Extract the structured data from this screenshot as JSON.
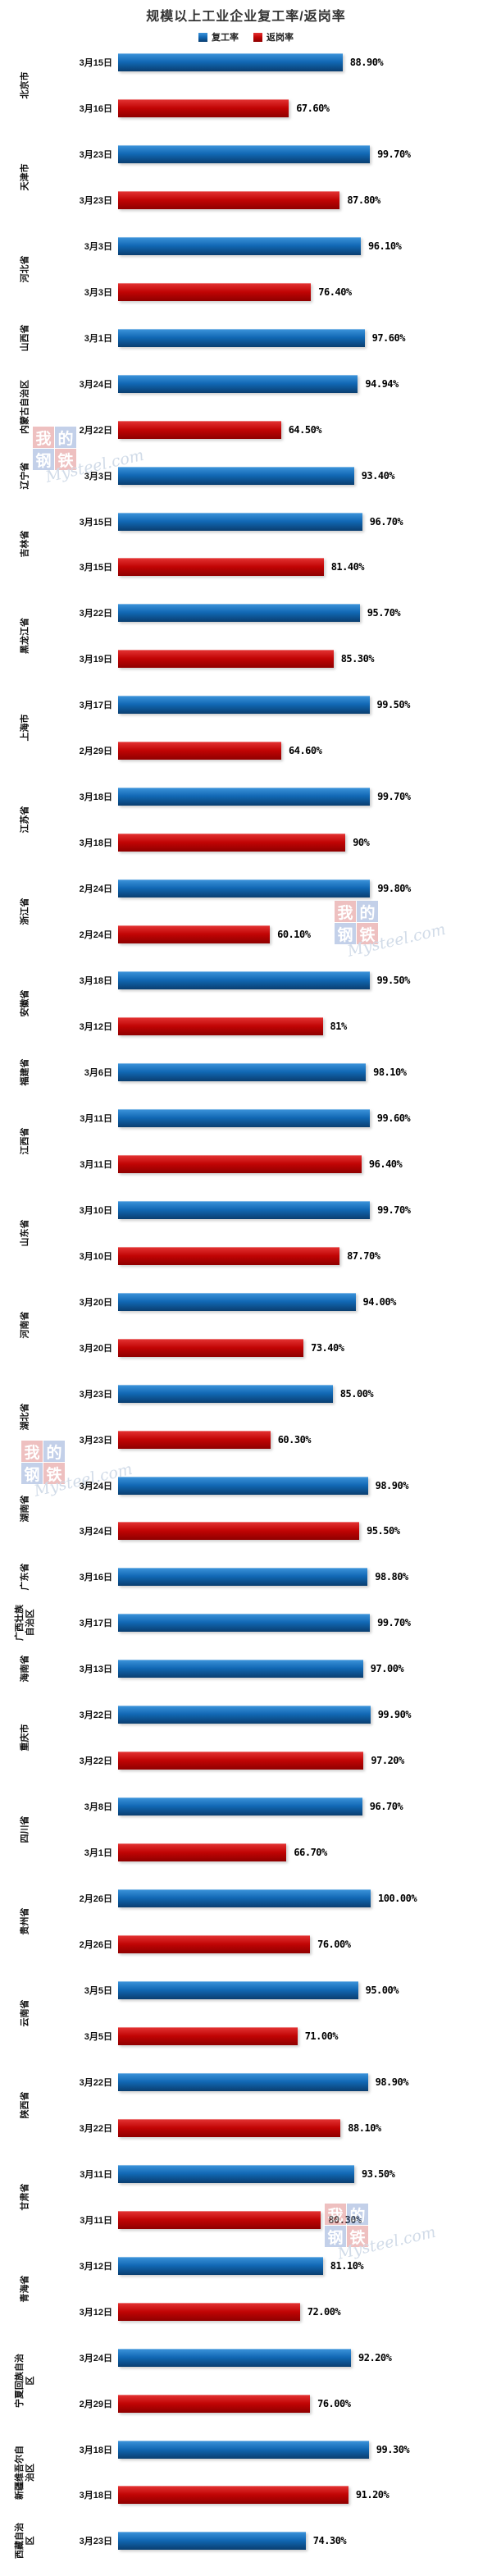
{
  "title": "规模以上工业企业复工率/返岗率",
  "legend": [
    {
      "label": "复工率",
      "color": "#1168B4"
    },
    {
      "label": "返岗率",
      "color": "#C00404"
    }
  ],
  "watermark": {
    "cells": [
      "我",
      "的",
      "钢",
      "铁"
    ],
    "text": "Mysteel.com"
  },
  "colors": {
    "recovery_bar": "#1168B4",
    "return_bar": "#C00404",
    "background": "#FFFFFF"
  },
  "chart_data": {
    "type": "bar",
    "orientation": "horizontal",
    "title": "规模以上工业企业复工率/返岗率",
    "xlabel": "",
    "ylabel": "",
    "xlim": [
      0,
      100
    ],
    "unit": "percent",
    "grid": false,
    "legend_position": "top",
    "series_names": [
      "复工率",
      "返岗率"
    ],
    "groups": [
      {
        "province": "北京市",
        "bars": [
          {
            "series": "复工率",
            "date": "3月15日",
            "value": 88.9,
            "label": "88.90%"
          },
          {
            "series": "返岗率",
            "date": "3月16日",
            "value": 67.6,
            "label": "67.60%"
          }
        ]
      },
      {
        "province": "天津市",
        "bars": [
          {
            "series": "复工率",
            "date": "3月23日",
            "value": 99.7,
            "label": "99.70%"
          },
          {
            "series": "返岗率",
            "date": "3月23日",
            "value": 87.8,
            "label": "87.80%"
          }
        ]
      },
      {
        "province": "河北省",
        "bars": [
          {
            "series": "复工率",
            "date": "3月3日",
            "value": 96.1,
            "label": "96.10%"
          },
          {
            "series": "返岗率",
            "date": "3月3日",
            "value": 76.4,
            "label": "76.40%"
          }
        ]
      },
      {
        "province": "山西省",
        "bars": [
          {
            "series": "复工率",
            "date": "3月1日",
            "value": 97.6,
            "label": "97.60%"
          }
        ]
      },
      {
        "province": "内蒙古自治区",
        "bars": [
          {
            "series": "复工率",
            "date": "3月24日",
            "value": 94.94,
            "label": "94.94%"
          },
          {
            "series": "返岗率",
            "date": "2月22日",
            "value": 64.5,
            "label": "64.50%"
          }
        ]
      },
      {
        "province": "辽宁省",
        "bars": [
          {
            "series": "复工率",
            "date": "3月3日",
            "value": 93.4,
            "label": "93.40%"
          }
        ]
      },
      {
        "province": "吉林省",
        "bars": [
          {
            "series": "复工率",
            "date": "3月15日",
            "value": 96.7,
            "label": "96.70%"
          },
          {
            "series": "返岗率",
            "date": "3月15日",
            "value": 81.4,
            "label": "81.40%"
          }
        ]
      },
      {
        "province": "黑龙江省",
        "bars": [
          {
            "series": "复工率",
            "date": "3月22日",
            "value": 95.7,
            "label": "95.70%"
          },
          {
            "series": "返岗率",
            "date": "3月19日",
            "value": 85.3,
            "label": "85.30%"
          }
        ]
      },
      {
        "province": "上海市",
        "bars": [
          {
            "series": "复工率",
            "date": "3月17日",
            "value": 99.5,
            "label": "99.50%"
          },
          {
            "series": "返岗率",
            "date": "2月29日",
            "value": 64.6,
            "label": "64.60%"
          }
        ]
      },
      {
        "province": "江苏省",
        "bars": [
          {
            "series": "复工率",
            "date": "3月18日",
            "value": 99.7,
            "label": "99.70%"
          },
          {
            "series": "返岗率",
            "date": "3月18日",
            "value": 90,
            "label": "90%"
          }
        ]
      },
      {
        "province": "浙江省",
        "bars": [
          {
            "series": "复工率",
            "date": "2月24日",
            "value": 99.8,
            "label": "99.80%"
          },
          {
            "series": "返岗率",
            "date": "2月24日",
            "value": 60.1,
            "label": "60.10%"
          }
        ]
      },
      {
        "province": "安徽省",
        "bars": [
          {
            "series": "复工率",
            "date": "3月18日",
            "value": 99.5,
            "label": "99.50%"
          },
          {
            "series": "返岗率",
            "date": "3月12日",
            "value": 81,
            "label": "81%"
          }
        ]
      },
      {
        "province": "福建省",
        "bars": [
          {
            "series": "复工率",
            "date": "3月6日",
            "value": 98.1,
            "label": "98.10%"
          }
        ]
      },
      {
        "province": "江西省",
        "bars": [
          {
            "series": "复工率",
            "date": "3月11日",
            "value": 99.6,
            "label": "99.60%"
          },
          {
            "series": "返岗率",
            "date": "3月11日",
            "value": 96.4,
            "label": "96.40%"
          }
        ]
      },
      {
        "province": "山东省",
        "bars": [
          {
            "series": "复工率",
            "date": "3月10日",
            "value": 99.7,
            "label": "99.70%"
          },
          {
            "series": "返岗率",
            "date": "3月10日",
            "value": 87.7,
            "label": "87.70%"
          }
        ]
      },
      {
        "province": "河南省",
        "bars": [
          {
            "series": "复工率",
            "date": "3月20日",
            "value": 94,
            "label": "94.00%"
          },
          {
            "series": "返岗率",
            "date": "3月20日",
            "value": 73.4,
            "label": "73.40%"
          }
        ]
      },
      {
        "province": "湖北省",
        "bars": [
          {
            "series": "复工率",
            "date": "3月23日",
            "value": 85,
            "label": "85.00%"
          },
          {
            "series": "返岗率",
            "date": "3月23日",
            "value": 60.3,
            "label": "60.30%"
          }
        ]
      },
      {
        "province": "湖南省",
        "bars": [
          {
            "series": "复工率",
            "date": "3月24日",
            "value": 98.9,
            "label": "98.90%"
          },
          {
            "series": "返岗率",
            "date": "3月24日",
            "value": 95.5,
            "label": "95.50%"
          }
        ]
      },
      {
        "province": "广东省",
        "bars": [
          {
            "series": "复工率",
            "date": "3月16日",
            "value": 98.8,
            "label": "98.80%"
          }
        ]
      },
      {
        "province": "广西壮族自治区",
        "bars": [
          {
            "series": "复工率",
            "date": "3月17日",
            "value": 99.7,
            "label": "99.70%"
          }
        ]
      },
      {
        "province": "海南省",
        "bars": [
          {
            "series": "复工率",
            "date": "3月13日",
            "value": 97,
            "label": "97.00%"
          }
        ]
      },
      {
        "province": "重庆市",
        "bars": [
          {
            "series": "复工率",
            "date": "3月22日",
            "value": 99.9,
            "label": "99.90%"
          },
          {
            "series": "返岗率",
            "date": "3月22日",
            "value": 97.2,
            "label": "97.20%"
          }
        ]
      },
      {
        "province": "四川省",
        "bars": [
          {
            "series": "复工率",
            "date": "3月8日",
            "value": 96.7,
            "label": "96.70%"
          },
          {
            "series": "返岗率",
            "date": "3月1日",
            "value": 66.7,
            "label": "66.70%"
          }
        ]
      },
      {
        "province": "贵州省",
        "bars": [
          {
            "series": "复工率",
            "date": "2月26日",
            "value": 100,
            "label": "100.00%"
          },
          {
            "series": "返岗率",
            "date": "2月26日",
            "value": 76,
            "label": "76.00%"
          }
        ]
      },
      {
        "province": "云南省",
        "bars": [
          {
            "series": "复工率",
            "date": "3月5日",
            "value": 95,
            "label": "95.00%"
          },
          {
            "series": "返岗率",
            "date": "3月5日",
            "value": 71,
            "label": "71.00%"
          }
        ]
      },
      {
        "province": "陕西省",
        "bars": [
          {
            "series": "复工率",
            "date": "3月22日",
            "value": 98.9,
            "label": "98.90%"
          },
          {
            "series": "返岗率",
            "date": "3月22日",
            "value": 88.1,
            "label": "88.10%"
          }
        ]
      },
      {
        "province": "甘肃省",
        "bars": [
          {
            "series": "复工率",
            "date": "3月11日",
            "value": 93.5,
            "label": "93.50%"
          },
          {
            "series": "返岗率",
            "date": "3月11日",
            "value": 80.3,
            "label": "80.30%"
          }
        ]
      },
      {
        "province": "青海省",
        "bars": [
          {
            "series": "复工率",
            "date": "3月12日",
            "value": 81.1,
            "label": "81.10%"
          },
          {
            "series": "返岗率",
            "date": "3月12日",
            "value": 72,
            "label": "72.00%"
          }
        ]
      },
      {
        "province": "宁夏回族自治区",
        "bars": [
          {
            "series": "复工率",
            "date": "3月24日",
            "value": 92.2,
            "label": "92.20%"
          },
          {
            "series": "返岗率",
            "date": "2月29日",
            "value": 76,
            "label": "76.00%"
          }
        ]
      },
      {
        "province": "新疆维吾尔自治区",
        "bars": [
          {
            "series": "复工率",
            "date": "3月18日",
            "value": 99.3,
            "label": "99.30%"
          },
          {
            "series": "返岗率",
            "date": "3月18日",
            "value": 91.2,
            "label": "91.20%"
          }
        ]
      },
      {
        "province": "西藏自治区",
        "bars": [
          {
            "series": "复工率",
            "date": "3月23日",
            "value": 74.3,
            "label": "74.30%"
          }
        ]
      }
    ]
  }
}
